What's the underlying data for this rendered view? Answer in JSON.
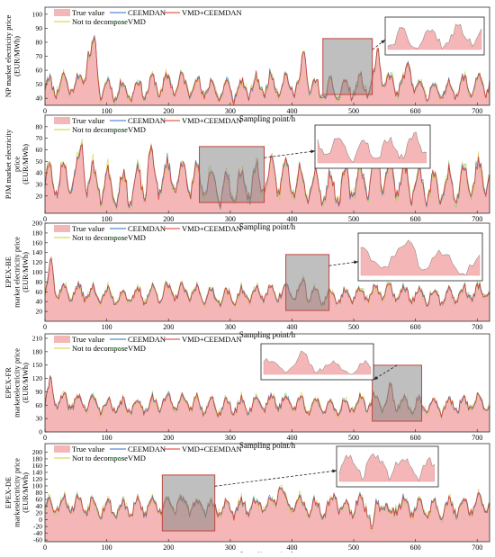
{
  "legend_labels": [
    "True value",
    "CEEMDAN",
    "VMD+CEEMDAN",
    "Not to decompose",
    "VMD"
  ],
  "series_colors": {
    "True value": "#f4b6b6",
    "CEEMDAN": "#2f6fc7",
    "VMD+CEEMDAN": "#e0332b",
    "Not to decompose": "#cfcf3a",
    "VMD": "#7fd08a"
  },
  "chart_data": [
    {
      "type": "area",
      "ylabel": "NP market electricity price\n(EUR/MWh)",
      "xlabel": "Sampling point/h",
      "xlim": [
        0,
        720
      ],
      "ylim": [
        35,
        105
      ],
      "xticks": [
        0,
        100,
        200,
        300,
        400,
        500,
        600,
        700
      ],
      "yticks": [
        40,
        50,
        60,
        70,
        80,
        90,
        100
      ],
      "zoom_window": [
        450,
        530
      ],
      "series": [
        "True value",
        "CEEMDAN",
        "VMD+CEEMDAN",
        "Not to decompose",
        "VMD"
      ]
    },
    {
      "type": "area",
      "ylabel": "PJM market electricity\nprice\n(EUR/MWh)",
      "xlabel": "Sampling point/h",
      "xlim": [
        0,
        720
      ],
      "ylim": [
        5,
        90
      ],
      "xticks": [
        0,
        100,
        200,
        300,
        400,
        500,
        600,
        700
      ],
      "yticks": [
        20,
        30,
        40,
        50,
        60,
        70,
        80
      ],
      "zoom_window": [
        250,
        355
      ],
      "series": [
        "True value",
        "CEEMDAN",
        "VMD+CEEMDAN",
        "Not to decompose",
        "VMD"
      ]
    },
    {
      "type": "area",
      "ylabel": "EPEX-BE\nmarket electricity price\n(EUR/MWh)",
      "xlabel": "Sampling point/h",
      "xlim": [
        0,
        720
      ],
      "ylim": [
        0,
        200
      ],
      "xticks": [
        0,
        100,
        200,
        300,
        400,
        500,
        600,
        700
      ],
      "yticks": [
        20,
        40,
        60,
        80,
        100,
        120,
        140,
        160,
        180,
        200
      ],
      "zoom_window": [
        390,
        460
      ],
      "series": [
        "True value",
        "CEEMDAN",
        "VMD+CEEMDAN",
        "Not to decompose",
        "VMD"
      ]
    },
    {
      "type": "area",
      "ylabel": "EPEX-FR\nmarketelectricity price\n(EUR/MWh)",
      "xlabel": "Sampling point/h",
      "xlim": [
        0,
        720
      ],
      "ylim": [
        0,
        220
      ],
      "xticks": [
        0,
        100,
        200,
        300,
        400,
        500,
        600,
        700
      ],
      "yticks": [
        0,
        30,
        60,
        90,
        120,
        150,
        180,
        210
      ],
      "zoom_window": [
        530,
        610
      ],
      "series": [
        "True value",
        "CEEMDAN",
        "VMD+CEEMDAN",
        "Not to decompose",
        "VMD"
      ]
    },
    {
      "type": "area",
      "ylabel": "EPEX-DE\nmarketelectricity price\n(EUR/MWh)",
      "xlabel": "Sampling point/h",
      "xlim": [
        0,
        720
      ],
      "ylim": [
        -65,
        225
      ],
      "xticks": [
        0,
        100,
        200,
        300,
        400,
        500,
        600,
        700
      ],
      "yticks": [
        -60,
        -40,
        -20,
        0,
        20,
        40,
        60,
        80,
        100,
        120,
        140,
        160,
        180,
        200
      ],
      "zoom_window": [
        190,
        275
      ],
      "series": [
        "True value",
        "CEEMDAN",
        "VMD+CEEMDAN",
        "Not to decompose",
        "VMD"
      ]
    }
  ]
}
